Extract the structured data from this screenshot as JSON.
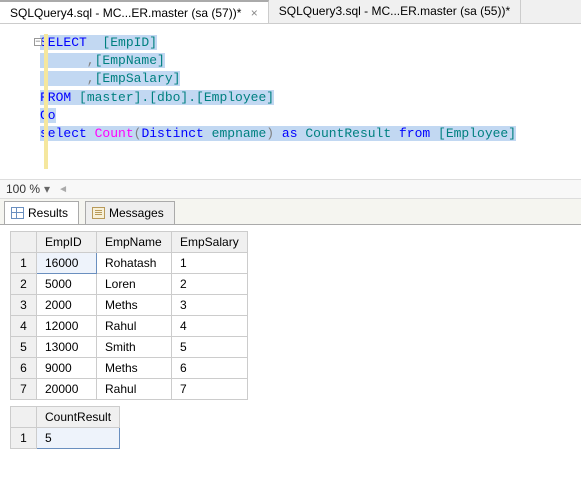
{
  "tabs": {
    "items": [
      {
        "label": "SQLQuery4.sql - MC...ER.master (sa (57))*",
        "active": true
      },
      {
        "label": "SQLQuery3.sql - MC...ER.master (sa (55))*",
        "active": false
      }
    ]
  },
  "code": {
    "line1_select": "SELECT",
    "line1_empid": "  [EmpID]",
    "line2_indent": "      ,",
    "line2_empname": "[EmpName]",
    "line3_indent": "      ,",
    "line3_empsalary": "[EmpSalary]",
    "line4_from": "FROM",
    "line4_table": " [master].[dbo].[Employee]",
    "line5_go": "Go",
    "line6_select": "select",
    "line6_count": "Count",
    "line6_lparen": "(",
    "line6_distinct": "Distinct",
    "line6_col": " empname",
    "line6_rparen": ")",
    "line6_as": "as",
    "line6_alias": "CountResult",
    "line6_from": "from",
    "line6_tbl": "[Employee]"
  },
  "zoom": {
    "value": "100 %"
  },
  "resultTabs": {
    "results": "Results",
    "messages": "Messages"
  },
  "grid1": {
    "columns": [
      "EmpID",
      "EmpName",
      "EmpSalary"
    ],
    "rows": [
      [
        "16000",
        "Rohatash",
        "1"
      ],
      [
        "5000",
        "Loren",
        "2"
      ],
      [
        "2000",
        "Meths",
        "3"
      ],
      [
        "12000",
        "Rahul",
        "4"
      ],
      [
        "13000",
        "Smith",
        "5"
      ],
      [
        "9000",
        "Meths",
        "6"
      ],
      [
        "20000",
        "Rahul",
        "7"
      ]
    ],
    "colWidths": [
      "60px",
      "75px",
      "70px"
    ]
  },
  "grid2": {
    "columns": [
      "CountResult"
    ],
    "rows": [
      [
        "5"
      ]
    ],
    "colWidths": [
      "80px"
    ]
  },
  "colors": {
    "highlight": "#c2d8f2",
    "keyword": "#0000ff",
    "identifier": "#008080",
    "function": "#ff00ff",
    "punct": "#808080"
  }
}
